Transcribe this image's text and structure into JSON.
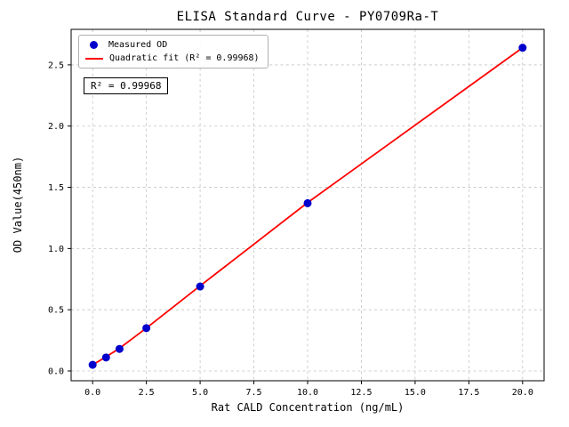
{
  "chart_data": {
    "type": "scatter",
    "title": "ELISA Standard Curve - PY0709Ra-T",
    "xlabel": "Rat CALD Concentration (ng/mL)",
    "ylabel": "OD Value(450nm)",
    "xlim": [
      -1,
      21
    ],
    "ylim": [
      -0.08,
      2.79
    ],
    "xticks": [
      0,
      2.5,
      5,
      7.5,
      10,
      12.5,
      15,
      17.5,
      20
    ],
    "xtick_labels": [
      "0.0",
      "2.5",
      "5.0",
      "7.5",
      "10.0",
      "12.5",
      "15.0",
      "17.5",
      "20.0"
    ],
    "yticks": [
      0,
      0.5,
      1.0,
      1.5,
      2.0,
      2.5
    ],
    "ytick_labels": [
      "0.0",
      "0.5",
      "1.0",
      "1.5",
      "2.0",
      "2.5"
    ],
    "grid": true,
    "grid_color": "#c3c3c3",
    "axis_color": "#000000",
    "annotation": "R² = 0.99968",
    "legend": {
      "position": "upper-left",
      "entries": [
        {
          "label": "Measured OD",
          "marker": "dot",
          "color": "#0000cd"
        },
        {
          "label": "Quadratic fit (R² = 0.99968)",
          "marker": "line",
          "color": "#ff0000"
        }
      ]
    },
    "series": [
      {
        "name": "Quadratic fit",
        "type": "line",
        "color": "#ff0000",
        "x": [
          0,
          0.625,
          1.25,
          2.5,
          5,
          10,
          20
        ],
        "y": [
          0.05,
          0.115,
          0.185,
          0.35,
          0.695,
          1.375,
          2.64
        ]
      },
      {
        "name": "Measured OD",
        "type": "scatter",
        "color": "#0000cd",
        "x": [
          0,
          0.625,
          1.25,
          2.5,
          5,
          10,
          20
        ],
        "y": [
          0.05,
          0.11,
          0.18,
          0.35,
          0.69,
          1.37,
          2.64
        ]
      }
    ]
  }
}
